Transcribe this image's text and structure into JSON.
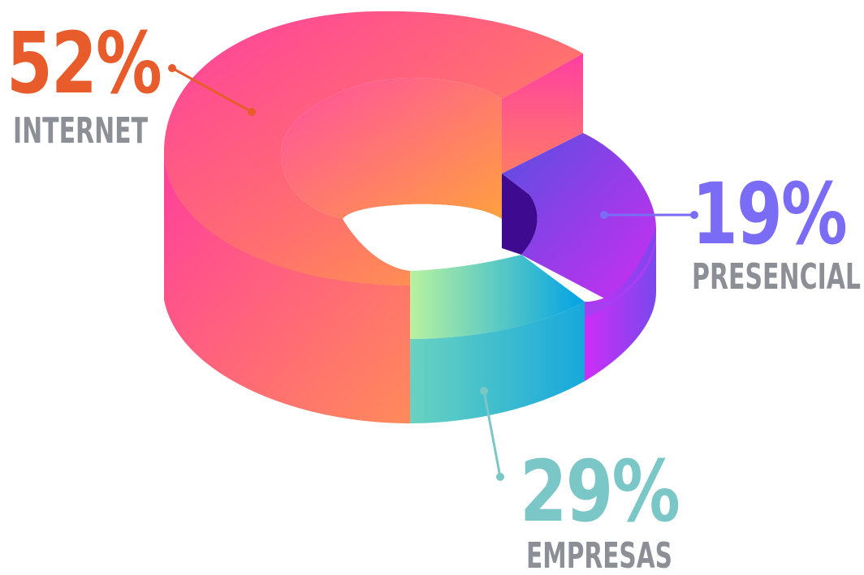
{
  "chart_data": {
    "type": "pie",
    "style": "3d-donut",
    "title": "",
    "categories": [
      "INTERNET",
      "PRESENCIAL",
      "EMPRESAS"
    ],
    "values": [
      52,
      19,
      29
    ],
    "value_labels": [
      "52%",
      "19%",
      "29%"
    ],
    "colors": {
      "internet": "#e85c2c",
      "presencial": "#7b6cf6",
      "empresas": "#7bc6c6",
      "category_text": "#8c9096"
    },
    "legend": "none",
    "grid": false
  }
}
